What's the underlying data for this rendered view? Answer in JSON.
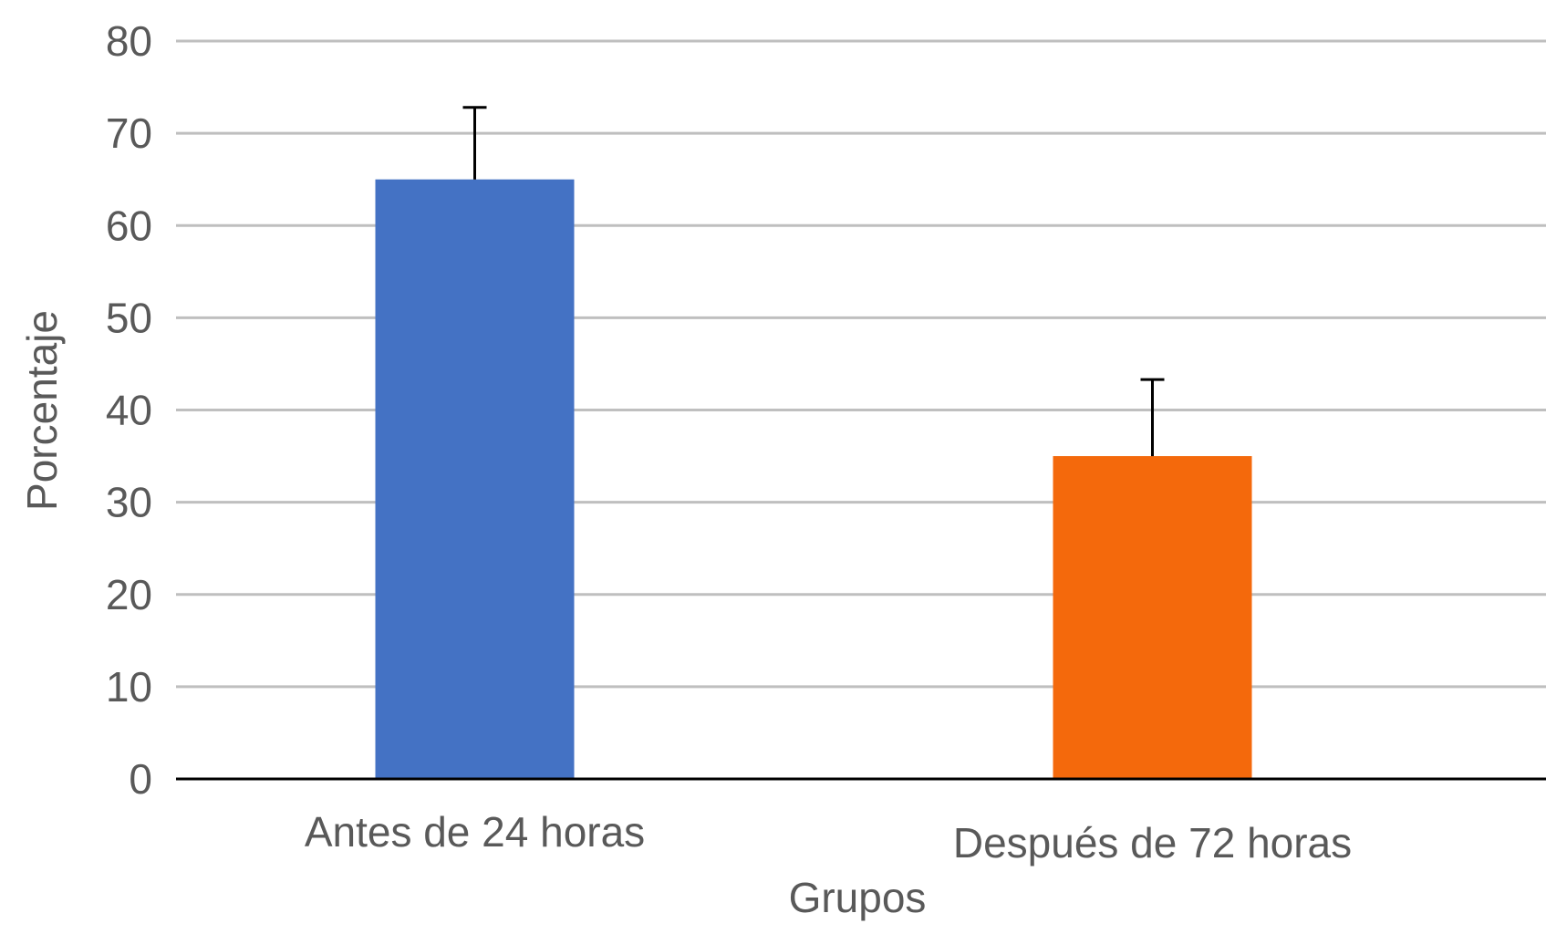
{
  "chart_data": {
    "type": "bar",
    "title": "",
    "xlabel": "Grupos",
    "ylabel": "Porcentaje",
    "categories": [
      "Antes de 24 horas",
      "Después de 72 horas"
    ],
    "values": [
      65,
      35
    ],
    "error_plus": [
      7.8,
      8.3
    ],
    "colors": [
      "#4472C4",
      "#F4690C"
    ],
    "ylim": [
      0,
      80
    ],
    "yticks": [
      "0",
      "10",
      "20",
      "30",
      "40",
      "50",
      "60",
      "70",
      "80"
    ],
    "grid": true,
    "legend": "none"
  }
}
